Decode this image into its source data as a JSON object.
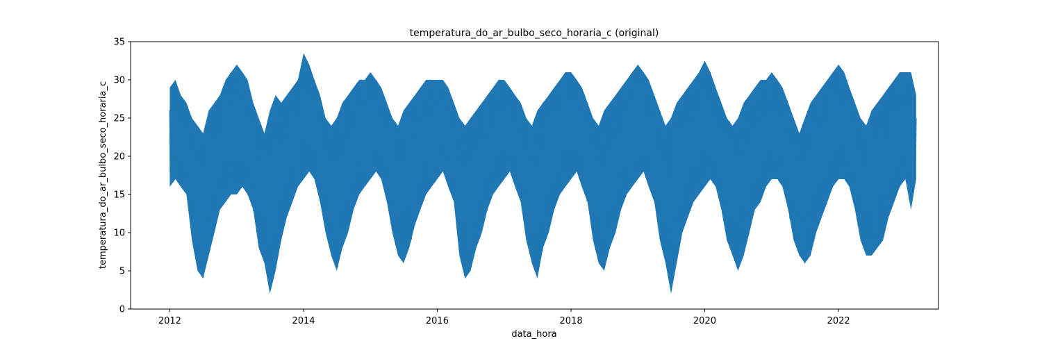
{
  "chart_data": {
    "type": "line",
    "title": "temperatura_do_ar_bulbo_seco_horaria_c (original)",
    "xlabel": "data_hora",
    "ylabel": "temperatura_do_ar_bulbo_seco_horaria_c",
    "x_range": [
      "2011-06-01",
      "2023-07-01"
    ],
    "ylim": [
      0,
      35
    ],
    "xticks": [
      "2012",
      "2014",
      "2016",
      "2018",
      "2020",
      "2022"
    ],
    "yticks": [
      "0",
      "5",
      "10",
      "15",
      "20",
      "25",
      "30",
      "35"
    ],
    "grid": false,
    "series": [
      {
        "color": "#1f77b4",
        "x": [
          "2012-01-01",
          "2012-02-01",
          "2012-03-01",
          "2012-04-01",
          "2012-05-01",
          "2012-06-01",
          "2012-07-01",
          "2012-08-01",
          "2012-09-01",
          "2012-10-01",
          "2012-11-01",
          "2012-12-01",
          "2013-01-01",
          "2013-02-01",
          "2013-03-01",
          "2013-04-01",
          "2013-05-01",
          "2013-06-01",
          "2013-07-01",
          "2013-08-01",
          "2013-09-01",
          "2013-10-01",
          "2013-11-01",
          "2013-12-01",
          "2014-01-01",
          "2014-02-01",
          "2014-03-01",
          "2014-04-01",
          "2014-05-01",
          "2014-06-01",
          "2014-07-01",
          "2014-08-01",
          "2014-09-01",
          "2014-10-01",
          "2014-11-01",
          "2014-12-01",
          "2015-01-01",
          "2015-02-01",
          "2015-03-01",
          "2015-04-01",
          "2015-05-01",
          "2015-06-01",
          "2015-07-01",
          "2015-08-01",
          "2015-09-01",
          "2015-10-01",
          "2015-11-01",
          "2015-12-01",
          "2016-01-01",
          "2016-02-01",
          "2016-03-01",
          "2016-04-01",
          "2016-05-01",
          "2016-06-01",
          "2016-07-01",
          "2016-08-01",
          "2016-09-01",
          "2016-10-01",
          "2016-11-01",
          "2016-12-01",
          "2017-01-01",
          "2017-02-01",
          "2017-03-01",
          "2017-04-01",
          "2017-05-01",
          "2017-06-01",
          "2017-07-01",
          "2017-08-01",
          "2017-09-01",
          "2017-10-01",
          "2017-11-01",
          "2017-12-01",
          "2018-01-01",
          "2018-02-01",
          "2018-03-01",
          "2018-04-01",
          "2018-05-01",
          "2018-06-01",
          "2018-07-01",
          "2018-08-01",
          "2018-09-01",
          "2018-10-01",
          "2018-11-01",
          "2018-12-01",
          "2019-01-01",
          "2019-02-01",
          "2019-03-01",
          "2019-04-01",
          "2019-05-01",
          "2019-06-01",
          "2019-07-01",
          "2019-08-01",
          "2019-09-01",
          "2019-10-01",
          "2019-11-01",
          "2019-12-01",
          "2020-01-01",
          "2020-02-01",
          "2020-03-01",
          "2020-04-01",
          "2020-05-01",
          "2020-06-01",
          "2020-07-01",
          "2020-08-01",
          "2020-09-01",
          "2020-10-01",
          "2020-11-01",
          "2020-12-01",
          "2021-01-01",
          "2021-02-01",
          "2021-03-01",
          "2021-04-01",
          "2021-05-01",
          "2021-06-01",
          "2021-07-01",
          "2021-08-01",
          "2021-09-01",
          "2021-10-01",
          "2021-11-01",
          "2021-12-01",
          "2022-01-01",
          "2022-02-01",
          "2022-03-01",
          "2022-04-01",
          "2022-05-01",
          "2022-06-01",
          "2022-07-01",
          "2022-08-01",
          "2022-09-01",
          "2022-10-01",
          "2022-11-01",
          "2022-12-01",
          "2023-01-01",
          "2023-02-01",
          "2023-03-01"
        ],
        "y_min": [
          16,
          17,
          16,
          15,
          9,
          5,
          4,
          7,
          10,
          13,
          14,
          15,
          15,
          16,
          15,
          13,
          8,
          6,
          2,
          5,
          9,
          12,
          14,
          16,
          17,
          18,
          17,
          14,
          10,
          7,
          5,
          8,
          10,
          13,
          15,
          16,
          17,
          18,
          17,
          14,
          10,
          7,
          6,
          8,
          11,
          13,
          15,
          16,
          17,
          18,
          16,
          14,
          7,
          4,
          5,
          8,
          10,
          13,
          15,
          16,
          17,
          18,
          16,
          14,
          9,
          6,
          4,
          8,
          10,
          13,
          15,
          16,
          17,
          18,
          16,
          14,
          9,
          6,
          5,
          8,
          10,
          13,
          15,
          16,
          17,
          18,
          16,
          14,
          9,
          6,
          2,
          6,
          10,
          12,
          14,
          15,
          16,
          17,
          16,
          13,
          9,
          7,
          5,
          7,
          10,
          13,
          14,
          16,
          17,
          17,
          16,
          13,
          9,
          7,
          6,
          7,
          10,
          12,
          14,
          16,
          17,
          17,
          16,
          13,
          9,
          7,
          7,
          8,
          9,
          12,
          14,
          16,
          17,
          13,
          17
        ],
        "y_max": [
          29,
          30,
          28,
          27,
          25,
          24,
          23,
          26,
          27,
          28,
          30,
          31,
          32,
          31,
          30,
          27,
          25,
          23,
          26,
          28,
          27,
          28,
          29,
          30,
          33.5,
          32,
          30,
          28,
          25,
          24,
          25,
          27,
          28,
          29,
          30,
          30,
          31,
          30,
          29,
          27,
          25,
          24,
          26,
          27,
          28,
          29,
          30,
          30,
          30,
          30,
          29,
          27,
          25,
          24,
          25,
          26,
          27,
          28,
          29,
          30,
          30,
          29,
          28,
          27,
          25,
          24,
          26,
          27,
          28,
          29,
          30,
          31,
          31,
          30,
          29,
          27,
          25,
          24,
          26,
          27,
          28,
          29,
          30,
          31,
          32,
          31,
          30,
          28,
          26,
          24,
          25,
          27,
          28,
          29,
          30,
          31,
          32.5,
          31,
          29,
          27,
          25,
          24,
          25,
          27,
          28,
          29,
          30,
          30,
          31,
          30,
          29,
          27,
          25,
          23,
          25,
          27,
          28,
          29,
          30,
          31,
          32,
          31,
          29,
          27,
          25,
          24,
          26,
          27,
          28,
          29,
          30,
          31,
          31,
          31,
          28
        ]
      }
    ]
  }
}
